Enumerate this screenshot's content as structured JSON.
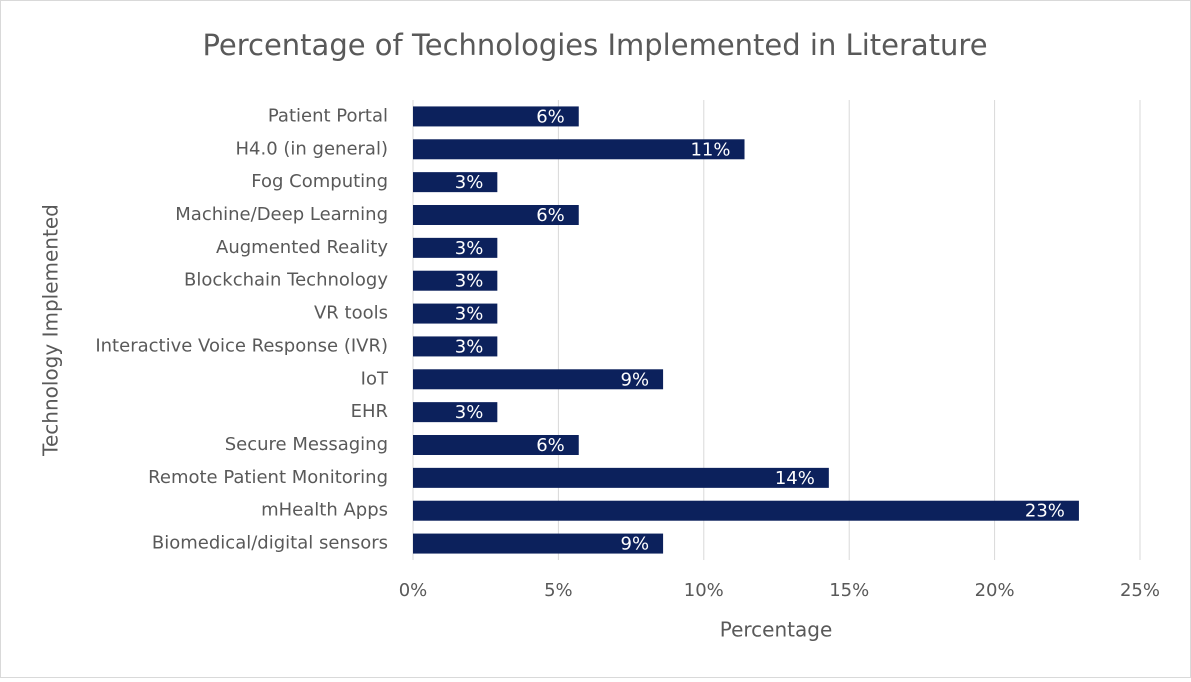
{
  "chart_data": {
    "type": "bar",
    "orientation": "horizontal",
    "title": "Percentage of Technologies Implemented in Literature",
    "x_label": "Percentage",
    "y_label": "Technology Implemented",
    "categories": [
      "Patient Portal",
      "H4.0 (in general)",
      "Fog Computing",
      "Machine/Deep Learning",
      "Augmented Reality",
      "Blockchain Technology",
      "VR tools",
      "Interactive Voice Response (IVR)",
      "IoT",
      "EHR",
      "Secure Messaging",
      "Remote Patient Monitoring",
      "mHealth Apps",
      "Biomedical/digital sensors"
    ],
    "values": [
      5.7,
      11.4,
      2.9,
      5.7,
      2.9,
      2.9,
      2.9,
      2.9,
      8.6,
      2.9,
      5.7,
      14.3,
      22.9,
      8.6
    ],
    "value_labels": [
      "6%",
      "11%",
      "3%",
      "6%",
      "3%",
      "3%",
      "3%",
      "3%",
      "9%",
      "3%",
      "6%",
      "14%",
      "23%",
      "9%"
    ],
    "color": "#0c215c",
    "xlim": [
      0,
      25
    ],
    "xticks": [
      {
        "value": 0,
        "label": "0%"
      },
      {
        "value": 5,
        "label": "5%"
      },
      {
        "value": 10,
        "label": "10%"
      },
      {
        "value": 15,
        "label": "15%"
      },
      {
        "value": 20,
        "label": "20%"
      },
      {
        "value": 25,
        "label": "25%"
      }
    ],
    "grid": true
  }
}
